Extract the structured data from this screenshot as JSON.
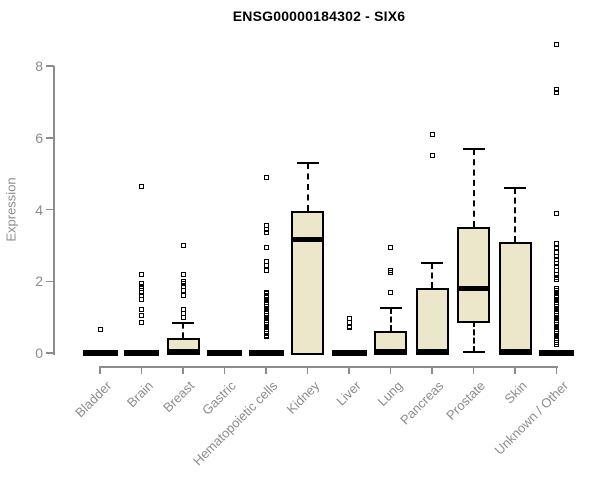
{
  "page": {
    "background": "#ffffff"
  },
  "chart_data": {
    "type": "boxplot",
    "title": "ENSG00000184302 - SIX6",
    "ylabel": "Expression",
    "xlabel": "",
    "ylim": [
      0,
      8.75
    ],
    "yticks": [
      0,
      2,
      4,
      6,
      8
    ],
    "grid": false,
    "legend": "none",
    "box_fill": "#ece7cb",
    "box_border": "#000000",
    "axis_color": "#8c8c8c",
    "title_color": "#000000",
    "categories": [
      "Bladder",
      "Brain",
      "Breast",
      "Gastric",
      "Hematopoietic cells",
      "Kidney",
      "Liver",
      "Lung",
      "Pancreas",
      "Prostate",
      "Skin",
      "Unknown / Other"
    ],
    "series": [
      {
        "category": "Bladder",
        "q1": 0,
        "median": 0,
        "q3": 0,
        "whisker_low": 0,
        "whisker_high": 0,
        "outliers": [
          0.65
        ]
      },
      {
        "category": "Brain",
        "q1": 0,
        "median": 0,
        "q3": 0,
        "whisker_low": 0,
        "whisker_high": 0,
        "outliers": [
          4.65,
          2.2,
          1.95,
          1.85,
          1.8,
          1.7,
          1.6,
          1.5,
          1.2,
          1.05,
          0.85
        ]
      },
      {
        "category": "Breast",
        "q1": 0,
        "median": 0.05,
        "q3": 0.42,
        "whisker_low": 0,
        "whisker_high": 0.85,
        "outliers": [
          3.0,
          2.2,
          2.0,
          1.95,
          1.85,
          1.75,
          1.6,
          1.2,
          1.1,
          1.0
        ]
      },
      {
        "category": "Gastric",
        "q1": 0,
        "median": 0,
        "q3": 0,
        "whisker_low": 0,
        "whisker_high": 0,
        "outliers": []
      },
      {
        "category": "Hematopoietic cells",
        "q1": 0,
        "median": 0,
        "q3": 0,
        "whisker_low": 0,
        "whisker_high": 0,
        "outliers": [
          4.9,
          3.55,
          3.45,
          3.35,
          2.95,
          2.55,
          2.45,
          2.3,
          1.7,
          1.65,
          1.6,
          1.55,
          1.5,
          1.45,
          1.4,
          1.35,
          1.3,
          1.25,
          1.2,
          1.15,
          1.1,
          1.05,
          1.0,
          0.95,
          0.9,
          0.85,
          0.8,
          0.75,
          0.7,
          0.65,
          0.6,
          0.55,
          0.5,
          0.45
        ]
      },
      {
        "category": "Kidney",
        "q1": 0,
        "median": 3.15,
        "q3": 3.95,
        "whisker_low": 0,
        "whisker_high": 5.3,
        "outliers": []
      },
      {
        "category": "Liver",
        "q1": 0,
        "median": 0,
        "q3": 0,
        "whisker_low": 0,
        "whisker_high": 0,
        "outliers": [
          0.95,
          0.85,
          0.75,
          0.7
        ]
      },
      {
        "category": "Lung",
        "q1": 0,
        "median": 0.05,
        "q3": 0.6,
        "whisker_low": 0,
        "whisker_high": 1.25,
        "outliers": [
          2.95,
          2.3,
          2.25,
          1.7
        ]
      },
      {
        "category": "Pancreas",
        "q1": 0,
        "median": 0.05,
        "q3": 1.8,
        "whisker_low": 0,
        "whisker_high": 2.5,
        "outliers": [
          6.1,
          5.5
        ]
      },
      {
        "category": "Prostate",
        "q1": 0.9,
        "median": 1.8,
        "q3": 3.5,
        "whisker_low": 0.02,
        "whisker_high": 5.7,
        "outliers": []
      },
      {
        "category": "Skin",
        "q1": 0,
        "median": 0.05,
        "q3": 3.1,
        "whisker_low": 0,
        "whisker_high": 4.6,
        "outliers": []
      },
      {
        "category": "Unknown / Other",
        "q1": 0,
        "median": 0,
        "q3": 0,
        "whisker_low": 0,
        "whisker_high": 0,
        "outliers": [
          8.6,
          7.35,
          7.25,
          3.9,
          3.05,
          2.95,
          2.9,
          2.8,
          2.7,
          2.6,
          2.5,
          2.4,
          2.3,
          2.2,
          2.1,
          2.05,
          1.8,
          1.75,
          1.7,
          1.65,
          1.6,
          1.55,
          1.5,
          1.45,
          1.4,
          1.35,
          1.3,
          1.25,
          1.2,
          1.15,
          1.1,
          1.05,
          1.0,
          0.95,
          0.9,
          0.85,
          0.8,
          0.75,
          0.7,
          0.65,
          0.6,
          0.55,
          0.5,
          0.45,
          0.4,
          0.35,
          0.3,
          0.25
        ]
      }
    ]
  }
}
